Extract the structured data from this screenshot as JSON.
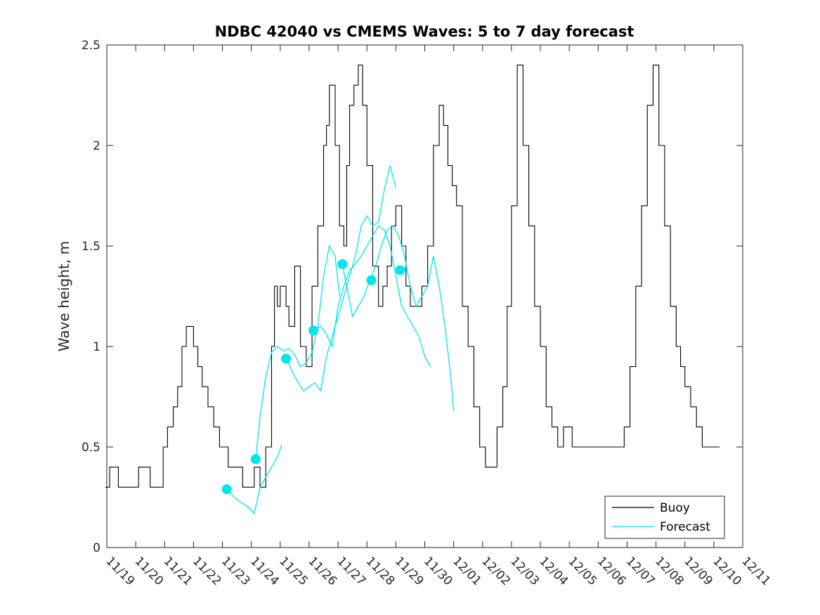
{
  "chart_data": {
    "type": "line",
    "title": "NDBC 42040 vs CMEMS Waves: 5 to 7 day forecast",
    "xlabel": "",
    "ylabel": "Wave height, m",
    "x_tick_labels": [
      "11/19",
      "11/20",
      "11/21",
      "11/22",
      "11/23",
      "11/24",
      "11/25",
      "11/26",
      "11/27",
      "11/28",
      "11/29",
      "11/30",
      "12/01",
      "12/02",
      "12/03",
      "12/04",
      "12/05",
      "12/06",
      "12/07",
      "12/08",
      "12/09",
      "12/10",
      "12/11"
    ],
    "x_range_days": [
      0,
      22
    ],
    "ylim": [
      0,
      2.5
    ],
    "y_ticks": [
      0,
      0.5,
      1,
      1.5,
      2,
      2.5
    ],
    "y_tick_labels": [
      "0",
      "0.5",
      "1",
      "1.5",
      "2",
      "2.5"
    ],
    "legend": {
      "position": "bottom-right",
      "entries": [
        "Buoy",
        "Forecast"
      ]
    },
    "colors": {
      "buoy": "#000000",
      "forecast": "#00e5ee"
    },
    "series": [
      {
        "name": "Buoy",
        "x": [
          -0.05,
          0.1,
          0.4,
          0.6,
          1.0,
          1.1,
          1.5,
          1.8,
          1.95,
          2.1,
          2.3,
          2.45,
          2.6,
          2.75,
          2.9,
          3.0,
          3.15,
          3.3,
          3.5,
          3.7,
          3.9,
          4.1,
          4.2,
          4.3,
          4.5,
          4.7,
          4.9,
          5.0,
          5.1,
          5.3,
          5.5,
          5.7,
          5.8,
          5.9,
          6.0,
          6.1,
          6.2,
          6.3,
          6.5,
          6.7,
          6.9,
          7.1,
          7.3,
          7.5,
          7.6,
          7.7,
          7.9,
          8.05,
          8.2,
          8.3,
          8.4,
          8.55,
          8.7,
          8.85,
          9.0,
          9.2,
          9.4,
          9.55,
          9.7,
          9.85,
          10.0,
          10.2,
          10.35,
          10.5,
          10.7,
          10.9,
          11.1,
          11.3,
          11.5,
          11.65,
          11.8,
          11.95,
          12.1,
          12.3,
          12.5,
          12.7,
          12.9,
          13.0,
          13.1,
          13.3,
          13.5,
          13.7,
          13.85,
          14.0,
          14.2,
          14.4,
          14.6,
          14.8,
          15.0,
          15.2,
          15.4,
          15.6,
          15.8,
          15.95,
          16.1,
          16.3,
          16.5,
          16.7,
          16.9,
          17.1,
          17.3,
          17.5,
          17.7,
          17.9,
          18.1,
          18.3,
          18.5,
          18.7,
          18.9,
          19.1,
          19.3,
          19.5,
          19.7,
          19.85,
          20.0,
          20.2,
          20.4,
          20.6,
          20.8,
          21.0,
          21.2
        ],
        "values": [
          0.3,
          0.4,
          0.3,
          0.3,
          0.3,
          0.4,
          0.3,
          0.3,
          0.5,
          0.6,
          0.7,
          0.8,
          1.0,
          1.1,
          1.1,
          1.0,
          0.9,
          0.8,
          0.7,
          0.6,
          0.5,
          0.5,
          0.4,
          0.4,
          0.4,
          0.3,
          0.3,
          0.3,
          0.4,
          0.3,
          0.5,
          1.0,
          1.3,
          1.2,
          1.3,
          1.3,
          1.2,
          1.1,
          1.4,
          1.0,
          0.9,
          1.3,
          1.6,
          2.0,
          2.1,
          2.3,
          2.0,
          1.6,
          1.5,
          1.9,
          2.2,
          2.3,
          2.4,
          2.2,
          1.9,
          1.4,
          1.2,
          1.3,
          1.4,
          1.6,
          1.7,
          1.5,
          1.3,
          1.2,
          1.2,
          1.3,
          1.5,
          2.0,
          2.2,
          2.1,
          1.9,
          1.8,
          1.7,
          1.2,
          1.0,
          0.7,
          0.5,
          0.5,
          0.4,
          0.4,
          0.6,
          0.8,
          1.2,
          1.7,
          2.4,
          2.0,
          1.6,
          1.2,
          1.0,
          0.7,
          0.6,
          0.5,
          0.6,
          0.6,
          0.5,
          0.5,
          0.5,
          0.5,
          0.5,
          0.5,
          0.5,
          0.5,
          0.5,
          0.6,
          0.9,
          1.3,
          1.7,
          2.2,
          2.4,
          2.0,
          1.6,
          1.2,
          1.0,
          0.9,
          0.8,
          0.7,
          0.6,
          0.5,
          0.5,
          0.5,
          0.5
        ]
      },
      {
        "name": "Forecast",
        "segments": [
          {
            "x": [
              4.15,
              4.4,
              4.7,
              4.9,
              5.1,
              5.3,
              5.5,
              5.7,
              5.9,
              6.05
            ],
            "values": [
              0.29,
              0.25,
              0.22,
              0.2,
              0.17,
              0.3,
              0.35,
              0.4,
              0.45,
              0.51
            ]
          },
          {
            "x": [
              5.15,
              5.3,
              5.5,
              5.7,
              5.9,
              6.1,
              6.3,
              6.5,
              6.7,
              6.9,
              7.1,
              7.3,
              7.5,
              7.7,
              7.9,
              8.05
            ],
            "values": [
              0.44,
              0.65,
              0.85,
              0.97,
              1.0,
              0.98,
              0.99,
              0.96,
              0.9,
              0.92,
              0.97,
              1.1,
              1.35,
              1.5,
              1.45,
              1.25
            ]
          },
          {
            "x": [
              6.2,
              6.5,
              6.8,
              7.0,
              7.2,
              7.4,
              7.6,
              7.8,
              8.0,
              8.2,
              8.4,
              8.6,
              8.8,
              9.0,
              9.2,
              9.4,
              9.6,
              9.8,
              10.0
            ],
            "values": [
              0.94,
              0.85,
              0.78,
              0.8,
              0.82,
              0.78,
              0.95,
              1.05,
              1.15,
              1.25,
              1.35,
              1.45,
              1.6,
              1.65,
              1.6,
              1.62,
              1.78,
              1.9,
              1.79
            ]
          },
          {
            "x": [
              7.15,
              7.4,
              7.6,
              7.8,
              8.0,
              8.2,
              8.4,
              8.6,
              8.8,
              9.0,
              9.2,
              9.4,
              9.6,
              9.8,
              10.0,
              10.2,
              10.4,
              10.6,
              10.8,
              11.0,
              11.2
            ],
            "values": [
              1.08,
              1.1,
              1.06,
              1.0,
              1.2,
              1.3,
              1.38,
              1.41,
              1.45,
              1.5,
              1.55,
              1.6,
              1.58,
              1.5,
              1.35,
              1.2,
              1.15,
              1.1,
              1.05,
              0.95,
              0.9
            ]
          },
          {
            "x": [
              8.15,
              8.3,
              8.5,
              8.7,
              8.9,
              9.1,
              9.3,
              9.5,
              9.7,
              9.9,
              10.1,
              10.3,
              10.5,
              10.7,
              10.9,
              11.1,
              11.3,
              11.5,
              11.7,
              11.9,
              12.0
            ],
            "values": [
              1.41,
              1.3,
              1.15,
              1.2,
              1.25,
              1.33,
              1.4,
              1.5,
              1.58,
              1.6,
              1.55,
              1.45,
              1.3,
              1.2,
              1.25,
              1.3,
              1.45,
              1.3,
              1.1,
              0.85,
              0.68
            ]
          }
        ],
        "markers": [
          {
            "x": 5.15,
            "y": 0.44
          },
          {
            "x": 4.15,
            "y": 0.29
          },
          {
            "x": 6.2,
            "y": 0.94
          },
          {
            "x": 7.15,
            "y": 1.08
          },
          {
            "x": 8.15,
            "y": 1.41
          },
          {
            "x": 9.15,
            "y": 1.33
          },
          {
            "x": 10.15,
            "y": 1.38
          }
        ]
      }
    ]
  }
}
